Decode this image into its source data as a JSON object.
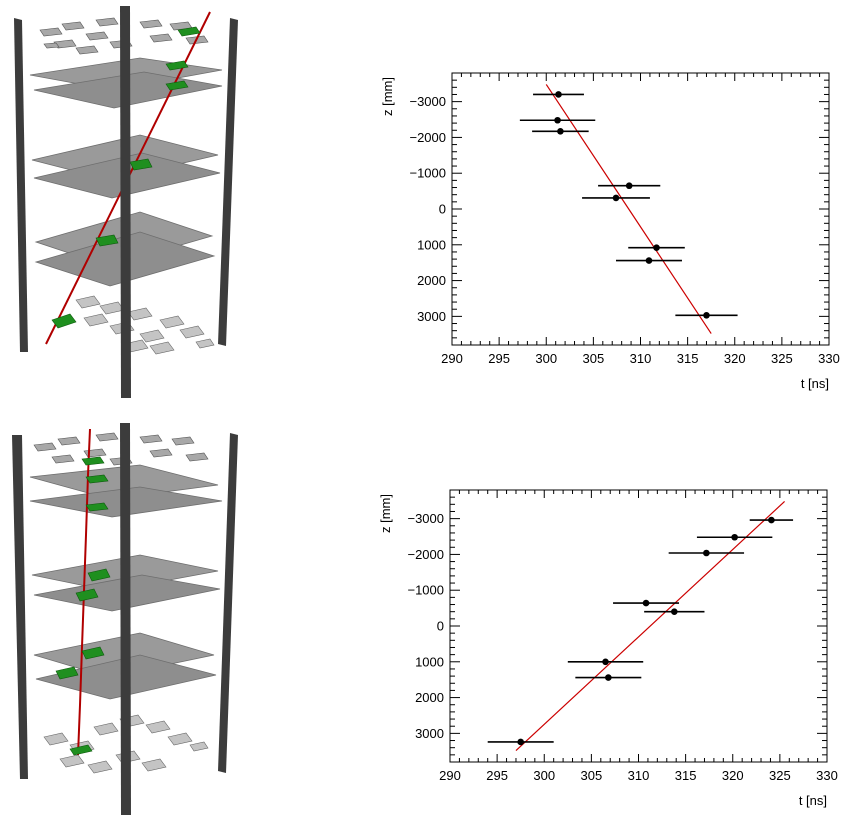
{
  "colors": {
    "fit_line": "#cc0000",
    "points": "#000000",
    "track": "#b00000",
    "hit_module": "#1f8f1f",
    "plane": "#9a9a9a",
    "plane_edge": "#6e6e6e",
    "pillar": "#3c3c3c"
  },
  "chart_data": [
    {
      "type": "scatter",
      "title": "",
      "xlabel": "t [ns]",
      "ylabel": "z [mm]",
      "xlim": [
        290,
        330
      ],
      "ylim": [
        -3800,
        3800
      ],
      "y_inverted": true,
      "xticks": [
        "290",
        "295",
        "300",
        "305",
        "310",
        "315",
        "320",
        "325",
        "330"
      ],
      "yticks": [
        "-3000",
        "-2000",
        "-1000",
        "0",
        "1000",
        "2000",
        "3000"
      ],
      "points": [
        {
          "t": 301.3,
          "z": -3200,
          "t_err": 2.7
        },
        {
          "t": 301.2,
          "z": -2480,
          "t_err": 4.0
        },
        {
          "t": 301.5,
          "z": -2170,
          "t_err": 3.0
        },
        {
          "t": 308.8,
          "z": -650,
          "t_err": 3.3
        },
        {
          "t": 307.4,
          "z": -310,
          "t_err": 3.6
        },
        {
          "t": 311.7,
          "z": 1080,
          "t_err": 3.0
        },
        {
          "t": 310.9,
          "z": 1440,
          "t_err": 3.5
        },
        {
          "t": 317.0,
          "z": 2970,
          "t_err": 3.3
        }
      ],
      "fit": {
        "t_start": 300.0,
        "z_start": -3480,
        "t_end": 317.5,
        "z_end": 3480
      }
    },
    {
      "type": "scatter",
      "title": "",
      "xlabel": "t [ns]",
      "ylabel": "z [mm]",
      "xlim": [
        290,
        330
      ],
      "ylim": [
        -3800,
        3800
      ],
      "y_inverted": true,
      "xticks": [
        "290",
        "295",
        "300",
        "305",
        "310",
        "315",
        "320",
        "325",
        "330"
      ],
      "yticks": [
        "-3000",
        "-2000",
        "-1000",
        "0",
        "1000",
        "2000",
        "3000"
      ],
      "points": [
        {
          "t": 324.1,
          "z": -2960,
          "t_err": 2.3
        },
        {
          "t": 320.2,
          "z": -2480,
          "t_err": 4.0
        },
        {
          "t": 317.2,
          "z": -2040,
          "t_err": 4.0
        },
        {
          "t": 310.8,
          "z": -640,
          "t_err": 3.5
        },
        {
          "t": 313.8,
          "z": -400,
          "t_err": 3.2
        },
        {
          "t": 306.5,
          "z": 1000,
          "t_err": 4.0
        },
        {
          "t": 306.8,
          "z": 1440,
          "t_err": 3.5
        },
        {
          "t": 297.5,
          "z": 3240,
          "t_err": 3.5
        }
      ],
      "fit": {
        "t_start": 297.0,
        "z_start": 3480,
        "t_end": 325.5,
        "z_end": -3480
      }
    }
  ]
}
